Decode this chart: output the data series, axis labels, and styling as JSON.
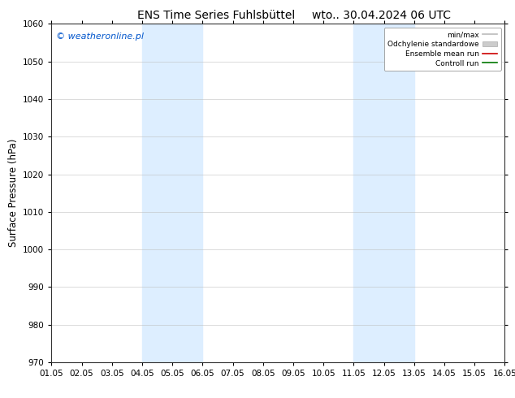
{
  "title_left": "ENS Time Series Fuhlsbüttel",
  "title_right": "wto.. 30.04.2024 06 UTC",
  "ylabel": "Surface Pressure (hPa)",
  "watermark": "© weatheronline.pl",
  "x_start": 1.05,
  "x_end": 16.05,
  "x_ticks": [
    1.05,
    2.05,
    3.05,
    4.05,
    5.05,
    6.05,
    7.05,
    8.05,
    9.05,
    10.05,
    11.05,
    12.05,
    13.05,
    14.05,
    15.05,
    16.05
  ],
  "x_tick_labels": [
    "01.05",
    "02.05",
    "03.05",
    "04.05",
    "05.05",
    "06.05",
    "07.05",
    "08.05",
    "09.05",
    "10.05",
    "11.05",
    "12.05",
    "13.05",
    "14.05",
    "15.05",
    "16.05"
  ],
  "ylim_min": 970,
  "ylim_max": 1060,
  "y_ticks": [
    970,
    980,
    990,
    1000,
    1010,
    1020,
    1030,
    1040,
    1050,
    1060
  ],
  "shaded_bands": [
    {
      "x_start": 4.05,
      "x_end": 6.05
    },
    {
      "x_start": 11.05,
      "x_end": 13.05
    }
  ],
  "shaded_color": "#ddeeff",
  "background_color": "#ffffff",
  "plot_bg_color": "#ffffff",
  "legend_entries": [
    {
      "label": "min/max",
      "color": "#bbbbbb",
      "lw": 1.2
    },
    {
      "label": "Odchylenie standardowe",
      "color": "#cccccc",
      "lw": 6
    },
    {
      "label": "Ensemble mean run",
      "color": "#cc0000",
      "lw": 1.2
    },
    {
      "label": "Controll run",
      "color": "#007700",
      "lw": 1.2
    }
  ],
  "title_fontsize": 10,
  "tick_fontsize": 7.5,
  "ylabel_fontsize": 8.5,
  "watermark_fontsize": 8,
  "grid_color": "#bbbbbb",
  "grid_alpha": 0.6,
  "spine_color": "#333333"
}
